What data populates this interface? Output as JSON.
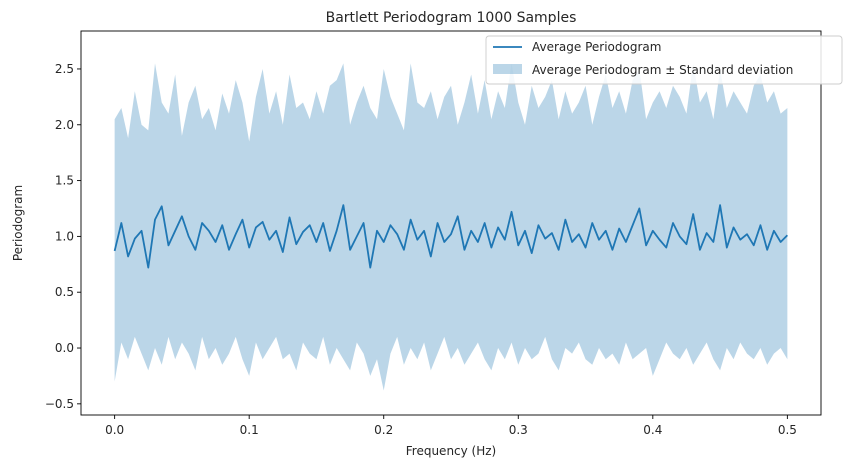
{
  "chart_data": {
    "type": "line",
    "title": "Bartlett Periodogram 1000 Samples",
    "xlabel": "Frequency (Hz)",
    "ylabel": "Periodogram",
    "xlim": [
      -0.025,
      0.525
    ],
    "ylim": [
      -0.6,
      2.84
    ],
    "xticks": [
      0.0,
      0.1,
      0.2,
      0.3,
      0.4,
      0.5
    ],
    "xtick_labels": [
      "0.0",
      "0.1",
      "0.2",
      "0.3",
      "0.4",
      "0.5"
    ],
    "yticks": [
      -0.5,
      0.0,
      0.5,
      1.0,
      1.5,
      2.0,
      2.5
    ],
    "ytick_labels": [
      "−0.5",
      "0.0",
      "0.5",
      "1.0",
      "1.5",
      "2.0",
      "2.5"
    ],
    "grid": false,
    "legend_position": "top-right",
    "colors": {
      "line": "#1f77b4",
      "band": "#1f77b4",
      "band_opacity": 0.3
    },
    "series": [
      {
        "name": "Average Periodogram",
        "kind": "line",
        "x": [
          0.0,
          0.005,
          0.01,
          0.015,
          0.02,
          0.025,
          0.03,
          0.035,
          0.04,
          0.045,
          0.05,
          0.055,
          0.06,
          0.065,
          0.07,
          0.075,
          0.08,
          0.085,
          0.09,
          0.095,
          0.1,
          0.105,
          0.11,
          0.115,
          0.12,
          0.125,
          0.13,
          0.135,
          0.14,
          0.145,
          0.15,
          0.155,
          0.16,
          0.165,
          0.17,
          0.175,
          0.18,
          0.185,
          0.19,
          0.195,
          0.2,
          0.205,
          0.21,
          0.215,
          0.22,
          0.225,
          0.23,
          0.235,
          0.24,
          0.245,
          0.25,
          0.255,
          0.26,
          0.265,
          0.27,
          0.275,
          0.28,
          0.285,
          0.29,
          0.295,
          0.3,
          0.305,
          0.31,
          0.315,
          0.32,
          0.325,
          0.33,
          0.335,
          0.34,
          0.345,
          0.35,
          0.355,
          0.36,
          0.365,
          0.37,
          0.375,
          0.38,
          0.385,
          0.39,
          0.395,
          0.4,
          0.405,
          0.41,
          0.415,
          0.42,
          0.425,
          0.43,
          0.435,
          0.44,
          0.445,
          0.45,
          0.455,
          0.46,
          0.465,
          0.47,
          0.475,
          0.48,
          0.485,
          0.49,
          0.495,
          0.5
        ],
        "y": [
          0.87,
          1.12,
          0.82,
          0.98,
          1.05,
          0.72,
          1.15,
          1.27,
          0.92,
          1.05,
          1.18,
          1.0,
          0.88,
          1.12,
          1.05,
          0.95,
          1.1,
          0.88,
          1.02,
          1.15,
          0.9,
          1.08,
          1.13,
          0.97,
          1.05,
          0.86,
          1.17,
          0.93,
          1.04,
          1.1,
          0.95,
          1.12,
          0.87,
          1.05,
          1.28,
          0.88,
          1.0,
          1.12,
          0.72,
          1.05,
          0.95,
          1.1,
          1.02,
          0.88,
          1.15,
          0.97,
          1.05,
          0.82,
          1.12,
          0.95,
          1.02,
          1.18,
          0.88,
          1.05,
          0.95,
          1.12,
          0.9,
          1.08,
          0.97,
          1.22,
          0.92,
          1.05,
          0.85,
          1.1,
          0.98,
          1.03,
          0.88,
          1.15,
          0.95,
          1.02,
          0.9,
          1.12,
          0.97,
          1.05,
          0.88,
          1.07,
          0.95,
          1.1,
          1.25,
          0.92,
          1.05,
          0.97,
          0.9,
          1.12,
          1.0,
          0.93,
          1.2,
          0.88,
          1.03,
          0.95,
          1.28,
          0.9,
          1.08,
          0.97,
          1.02,
          0.92,
          1.1,
          0.88,
          1.05,
          0.95,
          1.01
        ]
      },
      {
        "name": "Average Periodogram ± Standard deviation",
        "kind": "band",
        "upper": [
          2.05,
          2.15,
          1.88,
          2.3,
          2.0,
          1.95,
          2.55,
          2.2,
          2.1,
          2.45,
          1.9,
          2.2,
          2.35,
          2.05,
          2.15,
          1.95,
          2.28,
          2.1,
          2.4,
          2.2,
          1.85,
          2.25,
          2.5,
          2.1,
          2.3,
          2.0,
          2.45,
          2.15,
          2.2,
          2.05,
          2.3,
          2.1,
          2.35,
          2.4,
          2.55,
          2.0,
          2.2,
          2.35,
          2.15,
          2.05,
          2.5,
          2.25,
          2.1,
          1.95,
          2.55,
          2.2,
          2.15,
          2.3,
          2.05,
          2.25,
          2.35,
          2.0,
          2.2,
          2.45,
          2.1,
          2.4,
          2.05,
          2.3,
          2.15,
          2.55,
          2.2,
          2.0,
          2.35,
          2.15,
          2.25,
          2.4,
          2.05,
          2.3,
          2.1,
          2.2,
          2.35,
          2.0,
          2.25,
          2.45,
          2.15,
          2.3,
          2.1,
          2.4,
          2.5,
          2.05,
          2.2,
          2.3,
          2.15,
          2.35,
          2.25,
          2.1,
          2.55,
          2.2,
          2.3,
          2.05,
          2.5,
          2.15,
          2.3,
          2.2,
          2.1,
          2.35,
          2.45,
          2.2,
          2.3,
          2.1,
          2.15
        ],
        "lower": [
          -0.3,
          0.05,
          -0.1,
          0.1,
          -0.05,
          -0.2,
          0.0,
          -0.15,
          0.1,
          -0.1,
          0.05,
          -0.05,
          -0.2,
          0.1,
          -0.1,
          0.0,
          -0.15,
          -0.05,
          0.1,
          -0.1,
          -0.25,
          0.05,
          -0.1,
          0.0,
          0.1,
          -0.1,
          -0.05,
          -0.2,
          0.05,
          -0.05,
          -0.1,
          0.1,
          -0.15,
          0.0,
          -0.1,
          -0.2,
          0.05,
          -0.05,
          -0.25,
          -0.1,
          -0.38,
          -0.05,
          0.1,
          -0.15,
          0.0,
          -0.1,
          0.05,
          -0.2,
          -0.05,
          0.1,
          -0.1,
          0.0,
          -0.15,
          -0.05,
          0.05,
          -0.1,
          -0.2,
          0.0,
          -0.1,
          0.05,
          -0.15,
          0.0,
          -0.1,
          -0.05,
          0.1,
          -0.1,
          -0.2,
          0.0,
          -0.05,
          0.05,
          -0.1,
          -0.15,
          0.0,
          -0.1,
          -0.05,
          -0.15,
          0.05,
          -0.1,
          -0.05,
          0.0,
          -0.25,
          -0.1,
          0.05,
          -0.05,
          -0.1,
          0.0,
          -0.15,
          -0.05,
          0.05,
          -0.1,
          -0.2,
          0.0,
          -0.1,
          0.05,
          -0.05,
          -0.1,
          0.0,
          -0.15,
          -0.05,
          0.0,
          -0.1
        ]
      }
    ]
  }
}
